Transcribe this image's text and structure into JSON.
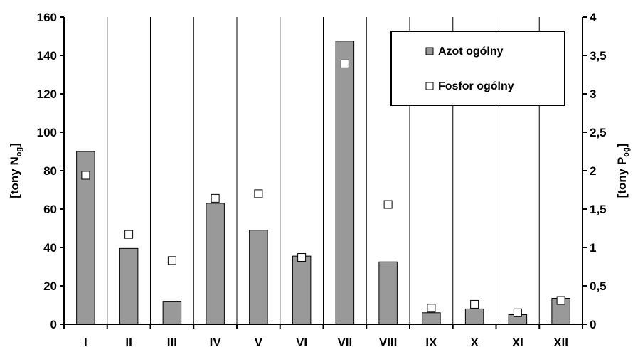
{
  "chart_data": {
    "type": "bar",
    "categories": [
      "I",
      "II",
      "III",
      "IV",
      "V",
      "VI",
      "VII",
      "VIII",
      "IX",
      "X",
      "XI",
      "XII"
    ],
    "series": [
      {
        "name": "Azot ogólny",
        "type": "bar",
        "axis": "left",
        "color": "#999999",
        "values": [
          90,
          39.5,
          12,
          63,
          49,
          35.5,
          147.5,
          32.5,
          6,
          8,
          5,
          13.5
        ]
      },
      {
        "name": "Fosfor ogólny",
        "type": "scatter",
        "axis": "right",
        "color": "#ffffff",
        "values": [
          1.94,
          1.17,
          0.83,
          1.64,
          1.7,
          0.87,
          3.39,
          1.56,
          0.21,
          0.26,
          0.15,
          0.31
        ]
      }
    ],
    "ylim": [
      0,
      160
    ],
    "ylim_right": [
      0,
      4
    ],
    "yticks": [
      "0",
      "20",
      "40",
      "60",
      "80",
      "100",
      "120",
      "140",
      "160"
    ],
    "yticks_right": [
      "0",
      "0,5",
      "1",
      "1,5",
      "2",
      "2,5",
      "3",
      "3,5",
      "4"
    ],
    "ylabel_parts": [
      "[tony N",
      "og",
      "]"
    ],
    "ylabel_right_parts": [
      "[tony P",
      "og",
      "]"
    ],
    "legend_position": "top-right",
    "grid": "vertical category separators"
  }
}
